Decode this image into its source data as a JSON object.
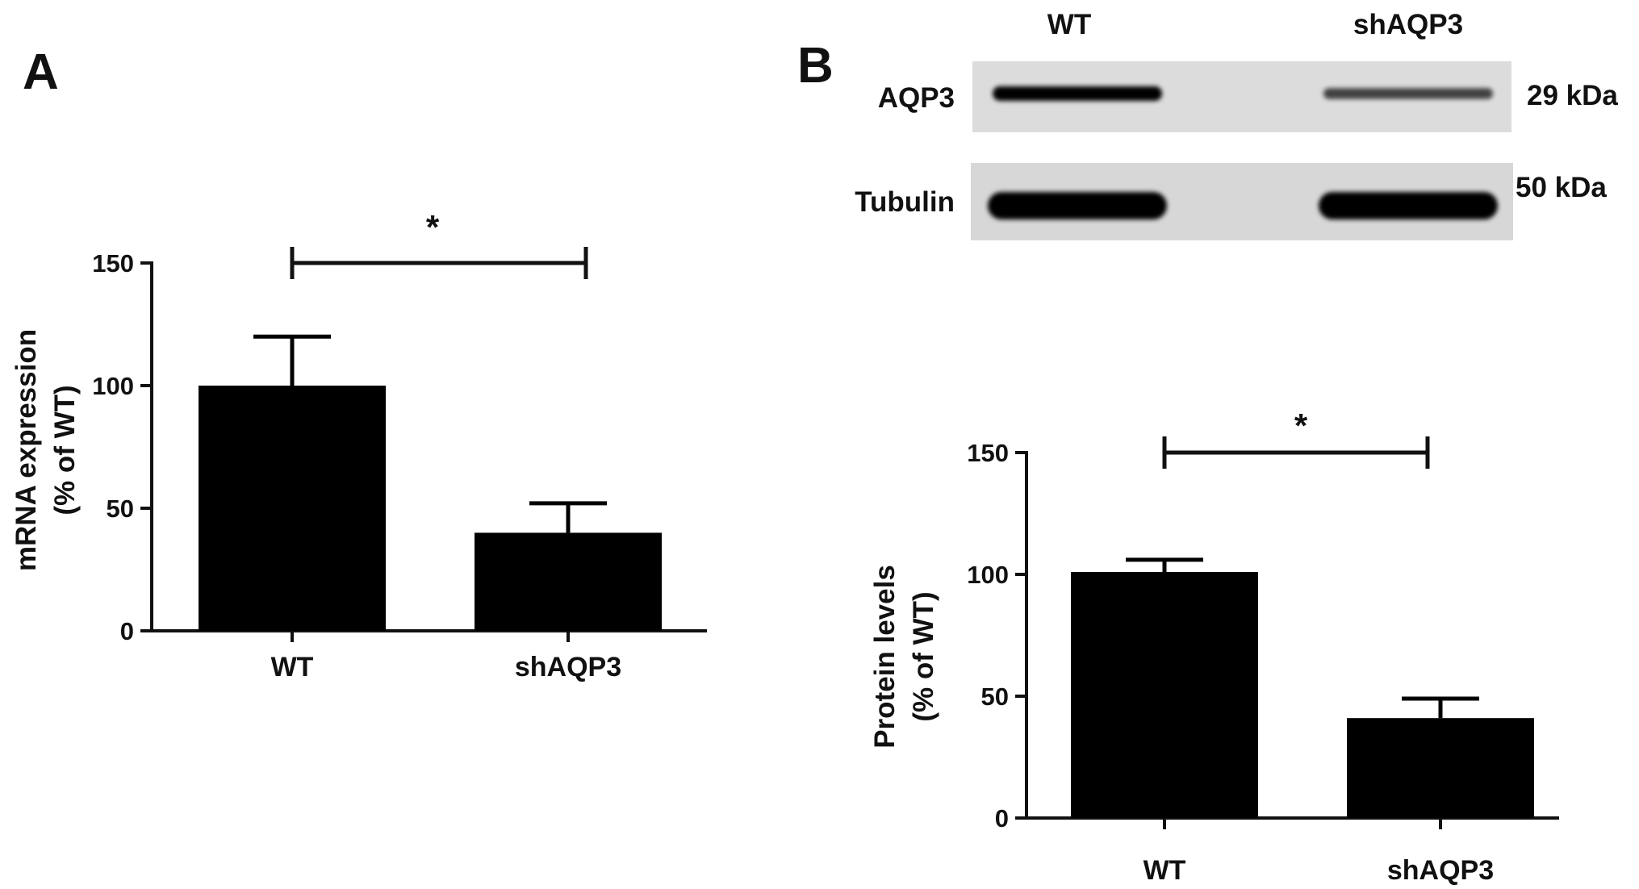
{
  "panels": {
    "a_label": "A",
    "b_label": "B"
  },
  "blot": {
    "lane_labels": [
      "WT",
      "shAQP3"
    ],
    "rows": [
      {
        "name": "AQP3",
        "size": "29 kDa",
        "band_intensity": [
          1.0,
          0.55
        ]
      },
      {
        "name": "Tubulin",
        "size": "50 kDa",
        "band_intensity": [
          1.0,
          1.0
        ]
      }
    ]
  },
  "chart_data": [
    {
      "type": "bar",
      "categories": [
        "WT",
        "shAQP3"
      ],
      "values": [
        100,
        40
      ],
      "errors": [
        20,
        12
      ],
      "ylabel_line1": "mRNA expression",
      "ylabel_line2": "(% of WT)",
      "ylim": [
        0,
        150
      ],
      "yticks": [
        "0",
        "50",
        "100",
        "150"
      ],
      "significance": "*",
      "bar_color": "#000000"
    },
    {
      "type": "bar",
      "categories": [
        "WT",
        "shAQP3"
      ],
      "values": [
        101,
        41
      ],
      "errors": [
        5,
        8
      ],
      "ylabel_line1": "Protein levels",
      "ylabel_line2": "(% of WT)",
      "ylim": [
        0,
        150
      ],
      "yticks": [
        "0",
        "50",
        "100",
        "150"
      ],
      "significance": "*",
      "bar_color": "#000000"
    }
  ]
}
